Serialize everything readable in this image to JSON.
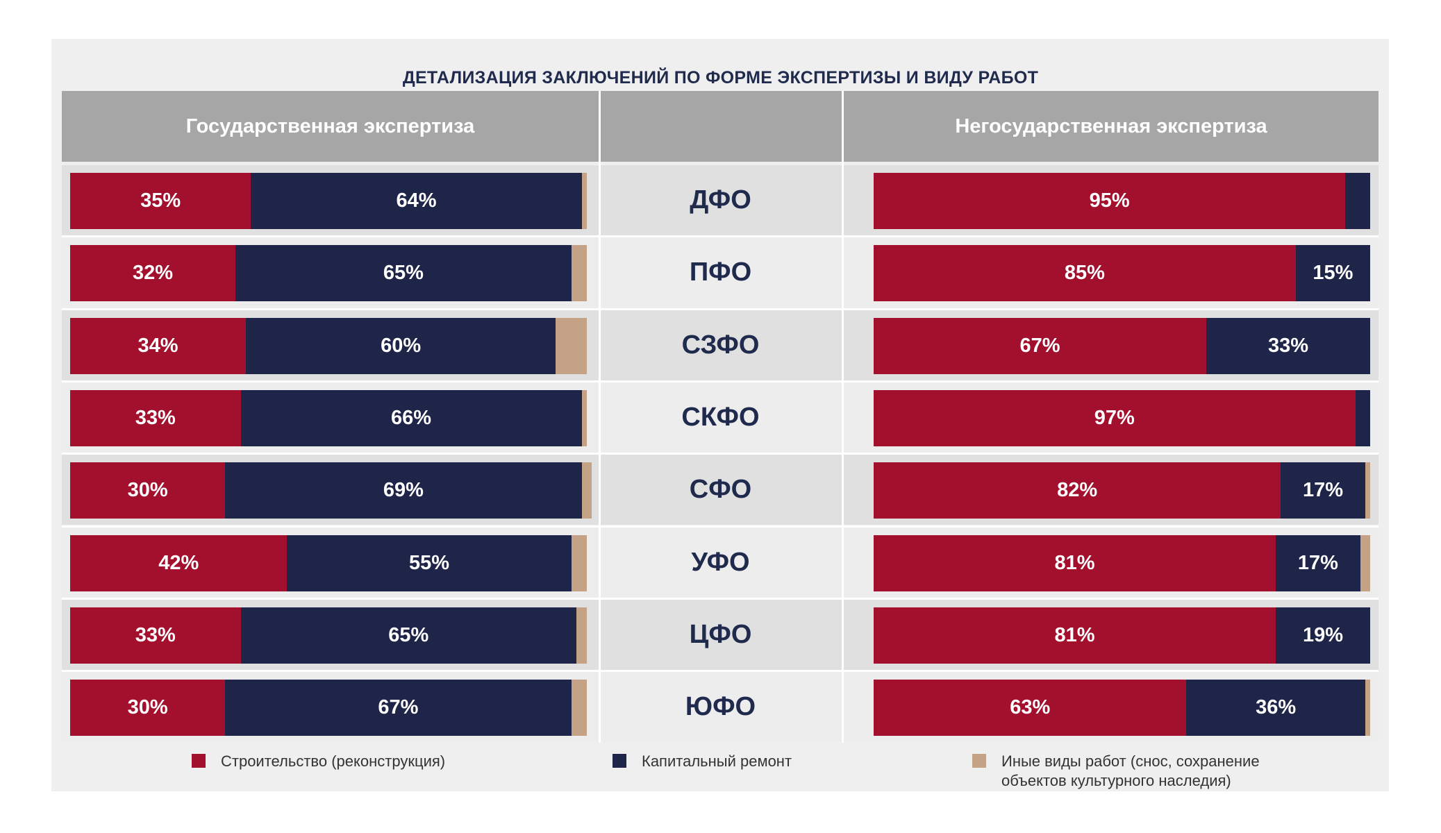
{
  "chart_data": {
    "type": "bar",
    "title": "ДЕТАЛИЗАЦИЯ ЗАКЛЮЧЕНИЙ ПО ФОРМЕ ЭКСПЕРТИЗЫ И ВИДУ РАБОТ",
    "stacked": true,
    "orientation": "horizontal",
    "panels": [
      "Государственная экспертиза",
      "Негосударственная экспертиза"
    ],
    "categories": [
      "ДФО",
      "ПФО",
      "СЗФО",
      "СКФО",
      "СФО",
      "УФО",
      "ЦФО",
      "ЮФО"
    ],
    "series": [
      {
        "name": "Строительство (реконструкция)",
        "color": "#a3102d"
      },
      {
        "name": "Капитальный ремонт",
        "color": "#1f2549"
      },
      {
        "name": "Иные виды работ (снос, сохранение объектов культурного наследия)",
        "color": "#c4a286"
      }
    ],
    "values": {
      "state": [
        [
          35,
          64,
          1
        ],
        [
          32,
          65,
          3
        ],
        [
          34,
          60,
          6
        ],
        [
          33,
          66,
          1
        ],
        [
          30,
          69,
          2
        ],
        [
          42,
          55,
          3
        ],
        [
          33,
          65,
          2
        ],
        [
          30,
          67,
          3
        ]
      ],
      "nonstate": [
        [
          95,
          5,
          0
        ],
        [
          85,
          15,
          0
        ],
        [
          67,
          33,
          0
        ],
        [
          97,
          3,
          0
        ],
        [
          82,
          17,
          1
        ],
        [
          81,
          17,
          2
        ],
        [
          81,
          19,
          0
        ],
        [
          63,
          36,
          1
        ]
      ]
    },
    "labels": {
      "state": [
        [
          "35%",
          "64%",
          ""
        ],
        [
          "32%",
          "65%",
          ""
        ],
        [
          "34%",
          "60%",
          ""
        ],
        [
          "33%",
          "66%",
          ""
        ],
        [
          "30%",
          "69%",
          ""
        ],
        [
          "42%",
          "55%",
          ""
        ],
        [
          "33%",
          "65%",
          ""
        ],
        [
          "30%",
          "67%",
          ""
        ]
      ],
      "nonstate": [
        [
          "95%",
          "",
          ""
        ],
        [
          "85%",
          "15%",
          ""
        ],
        [
          "67%",
          "33%",
          ""
        ],
        [
          "97%",
          "",
          ""
        ],
        [
          "82%",
          "17%",
          ""
        ],
        [
          "81%",
          "17%",
          ""
        ],
        [
          "81%",
          "19%",
          ""
        ],
        [
          "63%",
          "36%",
          ""
        ]
      ]
    },
    "legend": "bottom",
    "grid": false
  }
}
